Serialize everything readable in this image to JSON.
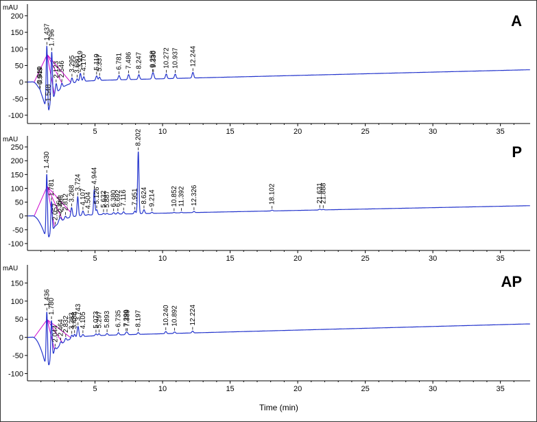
{
  "colors": {
    "trace": "#2233cc",
    "baseline": "#cc00cc",
    "axis": "#000000"
  },
  "chart_data": {
    "type": "line",
    "y_unit": "mAU",
    "xlabel": "Time (min)",
    "xlim": [
      0,
      37.2
    ],
    "x_ticks": [
      5,
      10,
      15,
      20,
      25,
      30,
      35
    ],
    "grid": false,
    "panels": [
      {
        "label": "A",
        "ylim": [
          -125,
          235
        ],
        "y_ticks": [
          -100,
          -50,
          0,
          50,
          100,
          150,
          200
        ],
        "peaks": [
          {
            "rt": "0.910",
            "t": 0.91,
            "h": 2,
            "yl": 0.91
          },
          {
            "rt": "0.949",
            "t": 0.949,
            "h": 2,
            "yl": 0.949
          },
          {
            "rt": "1.437",
            "t": 1.437,
            "h": 200
          },
          {
            "rt": "1.548",
            "t": 1.548,
            "h": -10
          },
          {
            "rt": "1.796",
            "t": 1.796,
            "h": 148
          },
          {
            "rt": "2.123",
            "t": 2.123,
            "h": 30
          },
          {
            "rt": "2.546",
            "t": 2.546,
            "h": 14
          },
          {
            "rt": "3.295",
            "t": 3.295,
            "h": 16
          },
          {
            "rt": "3.680",
            "t": 3.68,
            "h": 10
          },
          {
            "rt": "3.919",
            "t": 3.919,
            "h": 25
          },
          {
            "rt": "4.170",
            "t": 4.17,
            "h": 14
          },
          {
            "rt": "5.119",
            "t": 5.119,
            "h": 14
          },
          {
            "rt": "5.337",
            "t": 5.337,
            "h": 10
          },
          {
            "rt": "6.781",
            "t": 6.781,
            "h": 13
          },
          {
            "rt": "7.486",
            "t": 7.486,
            "h": 15
          },
          {
            "rt": "8.247",
            "t": 8.247,
            "h": 14
          },
          {
            "rt": "9.258",
            "t": 9.258,
            "h": 12
          },
          {
            "rt": "9.330",
            "t": 9.33,
            "h": 11
          },
          {
            "rt": "10.272",
            "t": 10.272,
            "h": 14
          },
          {
            "rt": "10.937",
            "t": 10.937,
            "h": 13
          },
          {
            "rt": "12.244",
            "t": 12.244,
            "h": 17
          }
        ]
      },
      {
        "label": "P",
        "ylim": [
          -125,
          290
        ],
        "y_ticks": [
          -100,
          -50,
          0,
          50,
          100,
          150,
          200,
          250
        ],
        "peaks": [
          {
            "rt": "1.430",
            "t": 1.43,
            "h": 240
          },
          {
            "rt": "1.781",
            "t": 1.781,
            "h": 110
          },
          {
            "rt": "2.057",
            "t": 2.057,
            "h": 2
          },
          {
            "rt": "2.354",
            "t": 2.354,
            "h": 10
          },
          {
            "rt": "2.463",
            "t": 2.463,
            "h": 12
          },
          {
            "rt": "2.812",
            "t": 2.812,
            "h": 10
          },
          {
            "rt": "3.268",
            "t": 3.268,
            "h": 34
          },
          {
            "rt": "3.724",
            "t": 3.724,
            "h": 70
          },
          {
            "rt": "4.107",
            "t": 4.107,
            "h": 16
          },
          {
            "rt": "4.504",
            "t": 4.504,
            "h": 2
          },
          {
            "rt": "4.944",
            "t": 4.944,
            "h": 90
          },
          {
            "rt": "5.126",
            "t": 5.126,
            "h": 18
          },
          {
            "rt": "5.632",
            "t": 5.632,
            "h": 4
          },
          {
            "rt": "5.887",
            "t": 5.887,
            "h": 4
          },
          {
            "rt": "6.380",
            "t": 6.38,
            "h": 6
          },
          {
            "rt": "6.692",
            "t": 6.692,
            "h": 6
          },
          {
            "rt": "7.116",
            "t": 7.116,
            "h": 8
          },
          {
            "rt": "7.951",
            "t": 7.951,
            "h": 10
          },
          {
            "rt": "8.202",
            "t": 8.202,
            "h": 225
          },
          {
            "rt": "8.624",
            "t": 8.624,
            "h": 14
          },
          {
            "rt": "9.214",
            "t": 9.214,
            "h": 4
          },
          {
            "rt": "10.852",
            "t": 10.852,
            "h": 2
          },
          {
            "rt": "11.392",
            "t": 11.392,
            "h": 2
          },
          {
            "rt": "12.326",
            "t": 12.326,
            "h": 4
          },
          {
            "rt": "18.102",
            "t": 18.102,
            "h": 3
          },
          {
            "rt": "21.631",
            "t": 21.631,
            "h": 3
          },
          {
            "rt": "21.888",
            "t": 21.888,
            "h": 2
          }
        ]
      },
      {
        "label": "AP",
        "ylim": [
          -120,
          200
        ],
        "y_ticks": [
          -100,
          -50,
          0,
          50,
          100,
          150
        ],
        "peaks": [
          {
            "rt": "1.436",
            "t": 1.436,
            "h": 160
          },
          {
            "rt": "1.780",
            "t": 1.78,
            "h": 105
          },
          {
            "rt": "2.044",
            "t": 2.044,
            "h": 10
          },
          {
            "rt": "2.464",
            "t": 2.464,
            "h": 8
          },
          {
            "rt": "2.832",
            "t": 2.832,
            "h": 8
          },
          {
            "rt": "3.283",
            "t": 3.283,
            "h": 10
          },
          {
            "rt": "3.488",
            "t": 3.488,
            "h": 10
          },
          {
            "rt": "3.743",
            "t": 3.743,
            "h": 30
          },
          {
            "rt": "4.105",
            "t": 4.105,
            "h": 6
          },
          {
            "rt": "5.073",
            "t": 5.073,
            "h": 5
          },
          {
            "rt": "5.297",
            "t": 5.297,
            "h": 5
          },
          {
            "rt": "5.893",
            "t": 5.893,
            "h": 5
          },
          {
            "rt": "6.735",
            "t": 6.735,
            "h": 6
          },
          {
            "rt": "7.299",
            "t": 7.299,
            "h": 5
          },
          {
            "rt": "7.389",
            "t": 7.389,
            "h": 5
          },
          {
            "rt": "8.197",
            "t": 8.197,
            "h": 5
          },
          {
            "rt": "10.240",
            "t": 10.24,
            "h": 6
          },
          {
            "rt": "10.892",
            "t": 10.892,
            "h": 4
          },
          {
            "rt": "12.224",
            "t": 12.224,
            "h": 5
          }
        ]
      }
    ]
  }
}
